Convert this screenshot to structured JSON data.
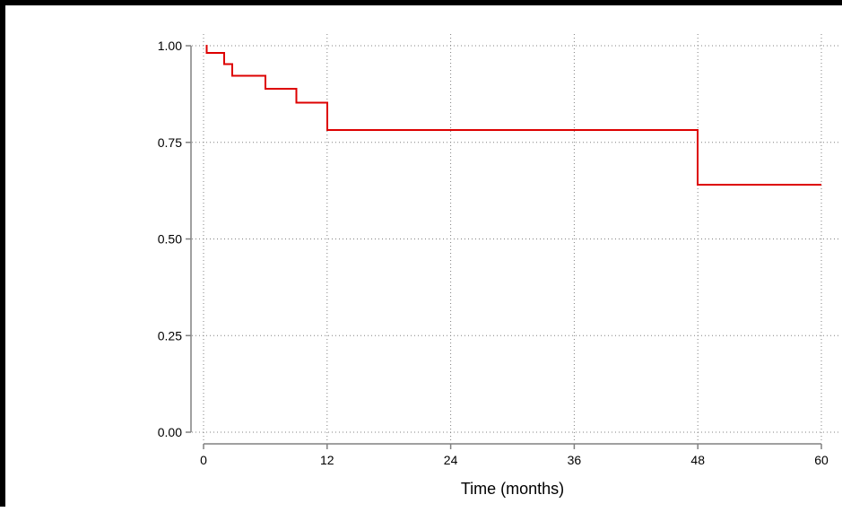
{
  "chart_data": {
    "type": "line",
    "title": "",
    "xlabel": "Time (months)",
    "ylabel": "",
    "xlim": [
      0,
      60
    ],
    "ylim": [
      0,
      1
    ],
    "x_ticks": [
      0,
      12,
      24,
      36,
      48,
      60
    ],
    "x_tick_labels": [
      "0",
      "12",
      "24",
      "36",
      "48",
      "60"
    ],
    "y_ticks": [
      0,
      0.25,
      0.5,
      0.75,
      1
    ],
    "y_tick_labels": [
      "0.00",
      "0.25",
      "0.50",
      "0.75",
      "1.00"
    ],
    "grid": true,
    "grid_style": "dotted",
    "step": true,
    "colors": {
      "series": "#dd0000",
      "axis": "#808080",
      "grid": "#808080"
    },
    "series": [
      {
        "x": [
          0.2,
          0.3,
          2,
          2.8,
          6,
          9,
          12,
          48,
          60
        ],
        "y": [
          1.0,
          0.982,
          0.952,
          0.922,
          0.889,
          0.853,
          0.782,
          0.64,
          0.64
        ]
      }
    ]
  }
}
